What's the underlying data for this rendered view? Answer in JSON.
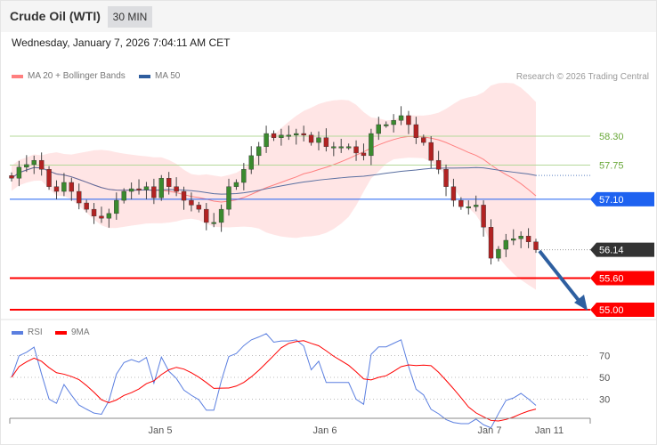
{
  "header": {
    "title": "Crude Oil (WTI)",
    "timeframe": "30 MIN"
  },
  "timestamp": "Wednesday, January 7, 2026 7:04:11 AM CET",
  "legend": {
    "ma20_label": "MA 20 + Bollinger Bands",
    "ma50_label": "MA 50",
    "ma20_color": "#ff7f7f",
    "ma50_color": "#2e5d9e"
  },
  "copyright": "Research © 2026 Trading Central",
  "rsi_legend": {
    "rsi_label": "RSI",
    "ma_label": "9MA",
    "rsi_color": "#5b7fe0",
    "ma_color": "#ff0000"
  },
  "levels": [
    {
      "value": "58.30",
      "type": "resistance",
      "color": "#6aa83a"
    },
    {
      "value": "57.75",
      "type": "resistance",
      "color": "#6aa83a"
    },
    {
      "value": "57.10",
      "type": "pivot",
      "color": "#1e62f0"
    },
    {
      "value": "56.14",
      "type": "last",
      "color": "#333333"
    },
    {
      "value": "55.60",
      "type": "support",
      "color": "#ff0000"
    },
    {
      "value": "55.00",
      "type": "support",
      "color": "#ff0000"
    }
  ],
  "rsi_ticks": [
    "70",
    "50",
    "30"
  ],
  "x_labels": [
    "Jan 5",
    "Jan 6",
    "Jan 7",
    "Jan 11"
  ],
  "chart_data": {
    "type": "candlestick",
    "price_range": [
      54.9,
      59.5
    ],
    "closes": [
      57.5,
      57.71,
      57.76,
      57.84,
      57.67,
      57.34,
      57.25,
      57.42,
      57.25,
      57.03,
      56.91,
      56.78,
      56.74,
      56.83,
      57.08,
      57.25,
      57.3,
      57.28,
      57.34,
      57.13,
      57.5,
      57.34,
      57.25,
      57.08,
      56.99,
      56.91,
      56.66,
      56.66,
      56.91,
      57.34,
      57.42,
      57.67,
      57.93,
      58.1,
      58.35,
      58.27,
      58.32,
      58.32,
      58.35,
      58.32,
      58.18,
      58.27,
      58.1,
      58.1,
      58.1,
      58.1,
      57.98,
      57.93,
      58.35,
      58.52,
      58.52,
      58.6,
      58.69,
      58.52,
      58.27,
      58.18,
      57.84,
      57.67,
      57.34,
      57.08,
      56.96,
      56.96,
      56.99,
      56.57,
      55.98,
      56.15,
      56.32,
      56.35,
      56.4,
      56.29,
      56.14
    ],
    "rsi_range": [
      10,
      90
    ]
  }
}
